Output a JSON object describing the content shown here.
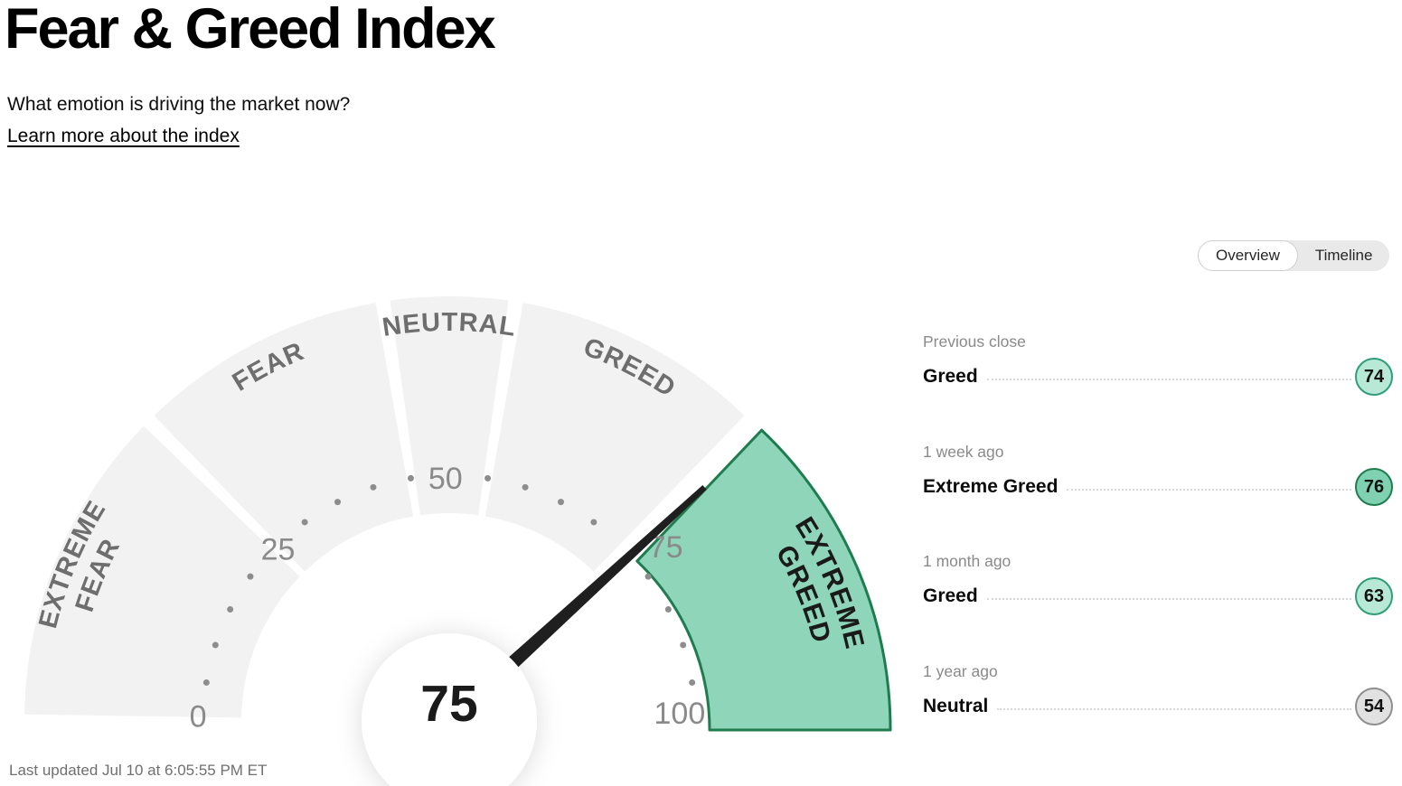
{
  "header": {
    "title": "Fear & Greed Index",
    "subtitle": "What emotion is driving the market now?",
    "link": "Learn more about the index"
  },
  "view_toggle": {
    "options": [
      {
        "label": "Overview",
        "selected": true
      },
      {
        "label": "Timeline",
        "selected": false
      }
    ]
  },
  "history": [
    {
      "period": "Previous close",
      "label": "Greed",
      "value": "74",
      "tone": "mint"
    },
    {
      "period": "1 week ago",
      "label": "Extreme Greed",
      "value": "76",
      "tone": "green"
    },
    {
      "period": "1 month ago",
      "label": "Greed",
      "value": "63",
      "tone": "mint"
    },
    {
      "period": "1 year ago",
      "label": "Neutral",
      "value": "54",
      "tone": "grey"
    }
  ],
  "footer": {
    "last_updated": "Last updated Jul 10 at 6:05:55 PM ET"
  },
  "chart_data": {
    "type": "gauge",
    "title": "Fear & Greed Index",
    "value": 75,
    "value_label": "75",
    "range": [
      0,
      100
    ],
    "tick_step": 5,
    "number_ticks": [
      "0",
      "25",
      "50",
      "75",
      "100"
    ],
    "current_zone": "Extreme Greed",
    "segments": [
      {
        "label": "EXTREME FEAR",
        "lines": [
          "EXTREME",
          "FEAR"
        ],
        "from": 0,
        "to": 25,
        "active": false
      },
      {
        "label": "FEAR",
        "lines": [
          "FEAR"
        ],
        "from": 25,
        "to": 45,
        "active": false
      },
      {
        "label": "NEUTRAL",
        "lines": [
          "NEUTRAL"
        ],
        "from": 45,
        "to": 55,
        "active": false
      },
      {
        "label": "GREED",
        "lines": [
          "GREED"
        ],
        "from": 55,
        "to": 75,
        "active": false
      },
      {
        "label": "EXTREME GREED",
        "lines": [
          "EXTREME",
          "GREED"
        ],
        "from": 75,
        "to": 100,
        "active": true
      }
    ],
    "colors": {
      "segment": "#f2f2f2",
      "active_fill": "#8ed5b9",
      "active_stroke": "#1e7c4f",
      "needle": "#1f1f1f",
      "hub": "#ffffff",
      "tick": "#8d8d8d",
      "tick_number": "#8a8a8a",
      "label": "#6e6e6e",
      "active_label": "#1a1a1a",
      "value_text": "#1a1a1a"
    }
  }
}
